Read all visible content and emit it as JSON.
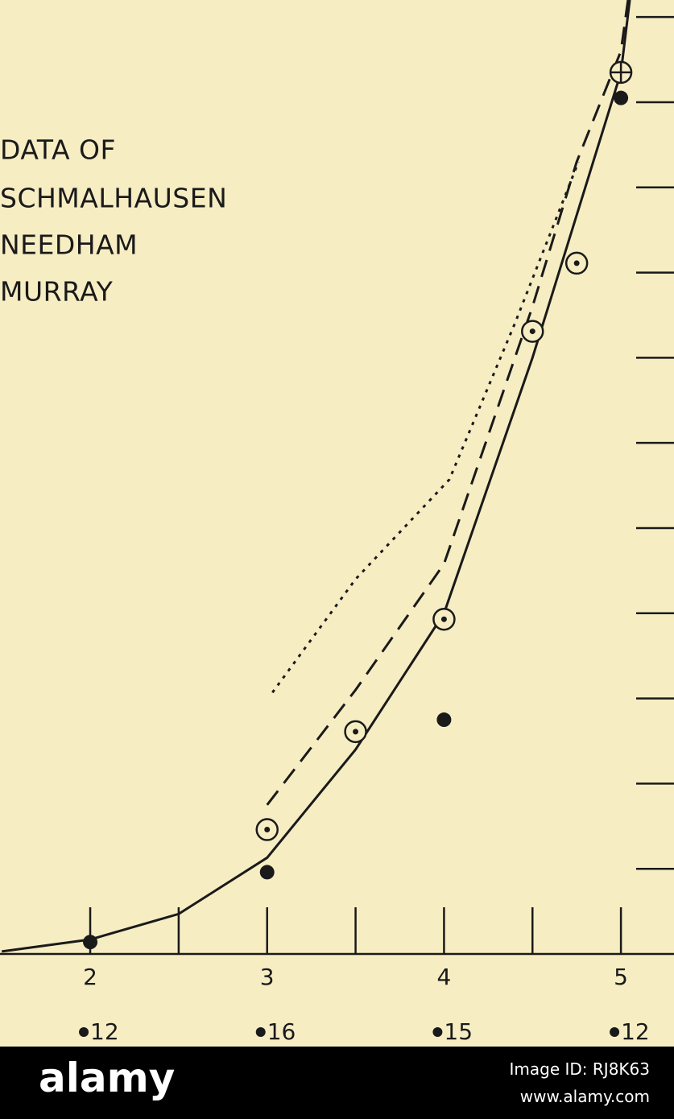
{
  "chart_data": {
    "type": "scatter",
    "legend_title": "DATA OF",
    "legend": [
      "SCHMALHAUSEN",
      "NEEDHAM",
      "MURRAY"
    ],
    "xlim": [
      1.49,
      5.3
    ],
    "ylim": [
      0,
      11.2
    ],
    "xticks": [
      2,
      3,
      4,
      5
    ],
    "minor_xticks": [
      2.5,
      3.5,
      4.5
    ],
    "yticks": [
      1,
      2,
      3,
      4,
      5,
      6,
      7,
      8,
      9,
      10,
      11
    ],
    "counts": {
      "x": [
        2,
        3,
        4,
        5
      ],
      "values": [
        12,
        16,
        15,
        12
      ]
    },
    "series": [
      {
        "style": "solid",
        "color": "#1a1a1a",
        "x": [
          1.5,
          2,
          2.5,
          3,
          3.5,
          4,
          4.5,
          5,
          5.05
        ],
        "values": [
          0.03,
          0.17,
          0.47,
          1.13,
          2.4,
          4.0,
          7.0,
          10.35,
          11.2
        ]
      },
      {
        "style": "dashed",
        "color": "#1a1a1a",
        "x": [
          3,
          3.5,
          4,
          4.5,
          4.75,
          5,
          5.04
        ],
        "values": [
          1.75,
          3.1,
          4.58,
          7.6,
          9.3,
          10.6,
          11.2
        ]
      },
      {
        "style": "dotted",
        "color": "#1a1a1a",
        "x": [
          3.03,
          3.5,
          4.03,
          4.4,
          4.76
        ],
        "values": [
          3.07,
          4.4,
          5.57,
          7.4,
          9.3
        ]
      },
      {
        "style": "circled",
        "color": "#1a1a1a",
        "x": [
          3,
          3.5,
          4,
          4.5,
          4.75
        ],
        "values": [
          1.46,
          2.61,
          3.93,
          7.31,
          8.11
        ]
      },
      {
        "style": "crossed",
        "color": "#1a1a1a",
        "x": [
          5
        ],
        "values": [
          10.35
        ]
      },
      {
        "style": "filled",
        "color": "#1a1a1a",
        "x": [
          2,
          3,
          4,
          5
        ],
        "values": [
          0.14,
          0.96,
          2.75,
          10.05
        ]
      }
    ]
  },
  "watermark": {
    "logo": "alamy",
    "image_id": "Image ID: RJ8K63",
    "url": "www.alamy.com"
  }
}
